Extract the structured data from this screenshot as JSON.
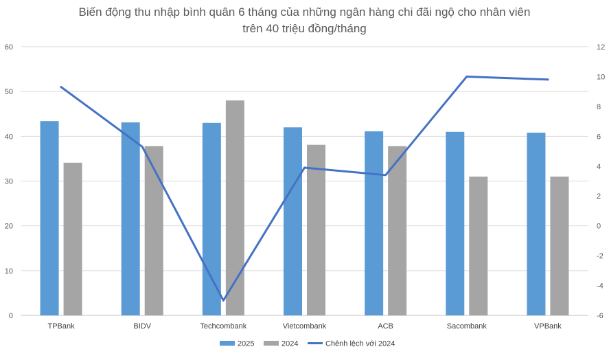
{
  "chart_data": {
    "type": "bar",
    "title_line1": "Biến động thu nhập bình quân 6 tháng của những ngân hàng chi đãi ngộ cho nhân viên",
    "title_line2": "trên 40 triệu đồng/tháng",
    "categories": [
      "TPBank",
      "BIDV",
      "Techcombank",
      "Vietcombank",
      "ACB",
      "Sacombank",
      "VPBank"
    ],
    "series": [
      {
        "name": "2025",
        "kind": "bar",
        "axis": "left",
        "color": "#5B9BD5",
        "values": [
          43.4,
          43.1,
          43.0,
          42.0,
          41.1,
          41.0,
          40.8
        ]
      },
      {
        "name": "2024",
        "kind": "bar",
        "axis": "left",
        "color": "#A5A5A5",
        "values": [
          34.1,
          37.8,
          48.0,
          38.1,
          37.8,
          31.0,
          31.0
        ]
      },
      {
        "name": "Chênh lệch với 2024",
        "kind": "line",
        "axis": "right",
        "color": "#4472C4",
        "values": [
          9.3,
          5.3,
          -5.0,
          3.9,
          3.4,
          10.0,
          9.8
        ]
      }
    ],
    "ylim_left": [
      0,
      60
    ],
    "yticks_left": [
      "0",
      "10",
      "20",
      "30",
      "40",
      "50",
      "60"
    ],
    "ylim_right": [
      -6,
      12
    ],
    "yticks_right": [
      "-6",
      "-4",
      "-2",
      "0",
      "2",
      "4",
      "6",
      "8",
      "10",
      "12"
    ],
    "grid": true,
    "legend_position": "bottom"
  }
}
